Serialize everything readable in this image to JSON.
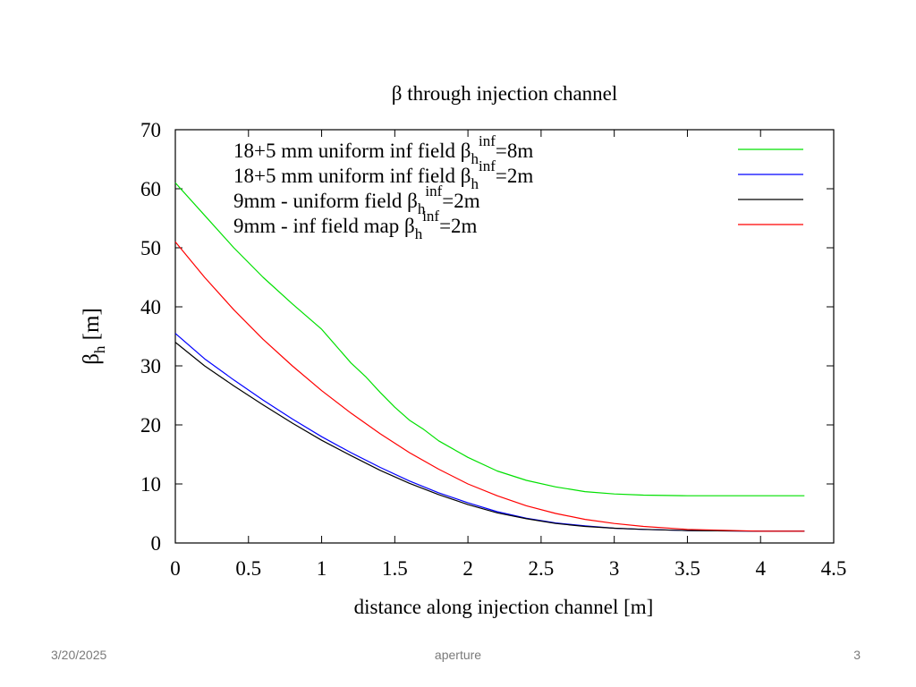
{
  "chart_data": {
    "type": "line",
    "title": "β through injection channel",
    "xlabel": "distance along injection channel [m]",
    "ylabel": {
      "base": "β",
      "sub": "h",
      "unit": " [m]"
    },
    "xlim": [
      0,
      4.5
    ],
    "ylim": [
      0,
      70
    ],
    "x_ticks": [
      "0",
      "0.5",
      "1",
      "1.5",
      "2",
      "2.5",
      "3",
      "3.5",
      "4",
      "4.5"
    ],
    "y_ticks": [
      "0",
      "10",
      "20",
      "30",
      "40",
      "50",
      "60",
      "70"
    ],
    "grid": false,
    "legend_position": "top",
    "series": [
      {
        "name": "18+5 mm uniform inf field βhinf=8m",
        "label": {
          "text": "18+5 mm uniform inf field β",
          "sub": "h",
          "sup": "inf",
          "rest": "=8m"
        },
        "color": "#00e000",
        "points": [
          [
            0,
            61
          ],
          [
            0.2,
            55.5
          ],
          [
            0.4,
            50
          ],
          [
            0.6,
            45
          ],
          [
            0.8,
            40.5
          ],
          [
            1.0,
            36.2
          ],
          [
            1.2,
            30.5
          ],
          [
            1.3,
            28.2
          ],
          [
            1.4,
            25.5
          ],
          [
            1.5,
            23
          ],
          [
            1.6,
            20.8
          ],
          [
            1.7,
            19.2
          ],
          [
            1.8,
            17.3
          ],
          [
            2.0,
            14.5
          ],
          [
            2.2,
            12.2
          ],
          [
            2.4,
            10.6
          ],
          [
            2.6,
            9.5
          ],
          [
            2.8,
            8.7
          ],
          [
            3.0,
            8.3
          ],
          [
            3.2,
            8.1
          ],
          [
            3.5,
            8.0
          ],
          [
            4.0,
            8.0
          ],
          [
            4.3,
            8.0
          ]
        ]
      },
      {
        "name": "18+5 mm uniform inf field βhinf=2m",
        "label": {
          "text": "18+5 mm uniform inf field β",
          "sub": "h",
          "sup": "inf",
          "rest": "=2m"
        },
        "color": "#0000ff",
        "points": [
          [
            0,
            35.5
          ],
          [
            0.2,
            31.2
          ],
          [
            0.4,
            27.6
          ],
          [
            0.6,
            24.2
          ],
          [
            0.8,
            21
          ],
          [
            1.0,
            18
          ],
          [
            1.2,
            15.3
          ],
          [
            1.4,
            12.8
          ],
          [
            1.6,
            10.5
          ],
          [
            1.8,
            8.5
          ],
          [
            2.0,
            6.8
          ],
          [
            2.2,
            5.3
          ],
          [
            2.4,
            4.2
          ],
          [
            2.6,
            3.4
          ],
          [
            2.8,
            2.9
          ],
          [
            3.0,
            2.5
          ],
          [
            3.2,
            2.3
          ],
          [
            3.5,
            2.1
          ],
          [
            4.0,
            2.0
          ],
          [
            4.3,
            2.0
          ]
        ]
      },
      {
        "name": "9mm - uniform field βhinf=2m",
        "label": {
          "text": "9mm - uniform field β",
          "sub": "h",
          "sup": "inf",
          "rest": "=2m"
        },
        "color": "#000000",
        "points": [
          [
            0,
            34
          ],
          [
            0.2,
            30
          ],
          [
            0.4,
            26.6
          ],
          [
            0.6,
            23.4
          ],
          [
            0.8,
            20.3
          ],
          [
            1.0,
            17.4
          ],
          [
            1.2,
            14.8
          ],
          [
            1.4,
            12.3
          ],
          [
            1.6,
            10.1
          ],
          [
            1.8,
            8.2
          ],
          [
            2.0,
            6.5
          ],
          [
            2.2,
            5.1
          ],
          [
            2.4,
            4.1
          ],
          [
            2.6,
            3.3
          ],
          [
            2.8,
            2.8
          ],
          [
            3.0,
            2.5
          ],
          [
            3.2,
            2.3
          ],
          [
            3.5,
            2.1
          ],
          [
            4.0,
            2.0
          ],
          [
            4.3,
            2.0
          ]
        ]
      },
      {
        "name": "9mm - inf field map βhinf=2m",
        "label": {
          "text": "9mm - inf field map β",
          "sub": "h",
          "sup": "inf",
          "rest": "=2m"
        },
        "color": "#ff0000",
        "points": [
          [
            0,
            51
          ],
          [
            0.2,
            45
          ],
          [
            0.4,
            39.5
          ],
          [
            0.6,
            34.5
          ],
          [
            0.8,
            30
          ],
          [
            1.0,
            25.8
          ],
          [
            1.2,
            22
          ],
          [
            1.4,
            18.5
          ],
          [
            1.6,
            15.3
          ],
          [
            1.8,
            12.5
          ],
          [
            2.0,
            10
          ],
          [
            2.2,
            8
          ],
          [
            2.4,
            6.3
          ],
          [
            2.6,
            5
          ],
          [
            2.8,
            4
          ],
          [
            3.0,
            3.3
          ],
          [
            3.2,
            2.8
          ],
          [
            3.5,
            2.3
          ],
          [
            4.0,
            2.0
          ],
          [
            4.3,
            2.0
          ]
        ]
      }
    ]
  },
  "footer": {
    "date": "3/20/2025",
    "center": "aperture",
    "page": "3"
  }
}
